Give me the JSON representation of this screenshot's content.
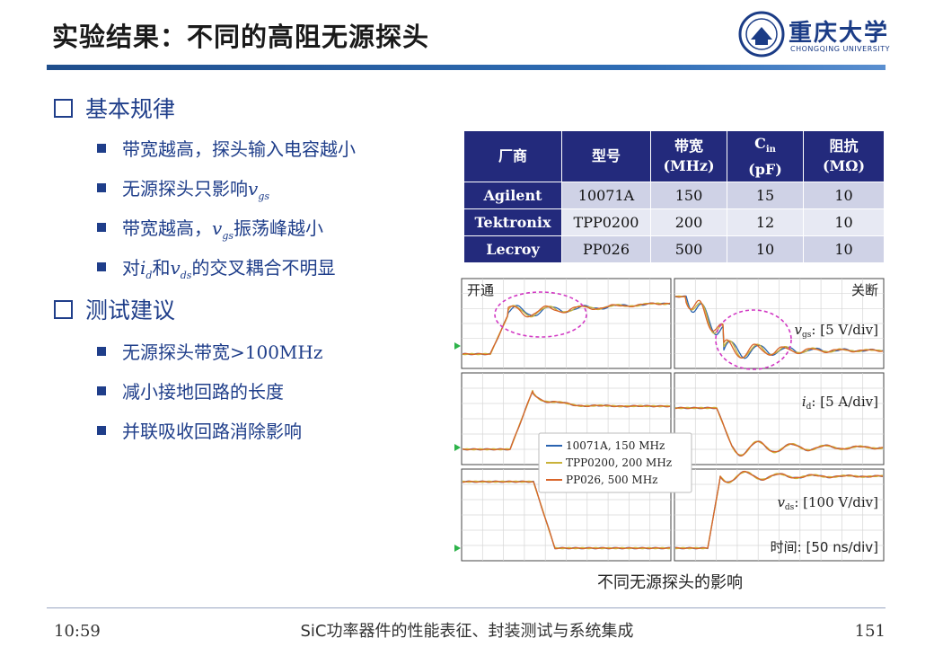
{
  "slide": {
    "title": "实验结果：不同的高阻无源探头",
    "university": "重庆大学",
    "university_en": "CHONGQING UNIVERSITY"
  },
  "sections": [
    {
      "heading": "基本规律",
      "bullets": [
        {
          "a": "带宽越高，探头输入电容越小"
        },
        {
          "a": "无源探头只影响",
          "v": "v",
          "vs": "gs"
        },
        {
          "a": "带宽越高，",
          "v": "v",
          "vs": "gs",
          "b": "振荡峰越小"
        },
        {
          "a": "对",
          "v": "i",
          "vs": "d",
          "b": "和",
          "v2": "v",
          "vs2": "ds",
          "c": "的交叉耦合不明显"
        }
      ]
    },
    {
      "heading": "测试建议",
      "bullets": [
        {
          "a": "无源探头带宽",
          "b": ">100MHz"
        },
        {
          "a": "减小接地回路的长度"
        },
        {
          "a": "并联吸收回路消除影响"
        }
      ]
    }
  ],
  "table": {
    "headers": [
      {
        "l1": "厂商",
        "l2": ""
      },
      {
        "l1": "型号",
        "l2": ""
      },
      {
        "l1": "带宽",
        "l2": "(MHz)"
      },
      {
        "l1": "C",
        "sub": "in",
        "l2": "(pF)"
      },
      {
        "l1": "阻抗",
        "l2": "(MΩ)"
      }
    ],
    "rows": [
      [
        "Agilent",
        "10071A",
        "150",
        "15",
        "10"
      ],
      [
        "Tektronix",
        "TPP0200",
        "200",
        "12",
        "10"
      ],
      [
        "Lecroy",
        "PP026",
        "500",
        "10",
        "10"
      ]
    ]
  },
  "chart_data": {
    "type": "line",
    "panels": {
      "turn_on": "开通",
      "turn_off": "关断"
    },
    "rows": [
      {
        "var": "v",
        "sub": "gs",
        "scale": ": [5 V/div]"
      },
      {
        "var": "i",
        "sub": "d",
        "scale": ": [5 A/div]"
      },
      {
        "var": "v",
        "sub": "ds",
        "scale": ": [100 V/div]"
      }
    ],
    "time_label": "时间: [50 ns/div]",
    "grid": true,
    "series": [
      {
        "name": "10071A, 150 MHz",
        "color": "#2a63b0"
      },
      {
        "name": "TPP0200, 200 MHz",
        "color": "#c9b23a"
      },
      {
        "name": "PP026, 500 MHz",
        "color": "#d9652a"
      }
    ],
    "caption": "不同无源探头的影响"
  },
  "footer": {
    "time": "10:59",
    "course": "SiC功率器件的性能表征、封装测试与系统集成",
    "page": "151"
  },
  "colors": {
    "accent": "#1f3e8a",
    "table_header": "#232a7c"
  }
}
